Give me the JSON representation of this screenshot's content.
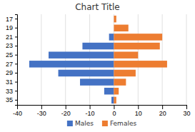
{
  "chart_data": {
    "type": "bar",
    "orientation": "horizontal",
    "title": "Chart Title",
    "categories": [
      "35",
      "33",
      "31",
      "29",
      "27",
      "25",
      "23",
      "21",
      "19",
      "17"
    ],
    "series": [
      {
        "name": "Males",
        "color": "#4472C4",
        "values": [
          -1,
          -4,
          -14,
          -23,
          -35,
          -27,
          -13,
          -2,
          0,
          0
        ]
      },
      {
        "name": "Females",
        "color": "#ED7D31",
        "values": [
          1,
          2,
          5,
          9,
          22,
          10,
          19,
          20,
          6,
          1
        ]
      }
    ],
    "xlim": [
      -40,
      30
    ],
    "xticks": [
      -40,
      -30,
      -20,
      -10,
      0,
      10,
      20,
      30
    ],
    "grid": true,
    "legend": "bottom"
  }
}
